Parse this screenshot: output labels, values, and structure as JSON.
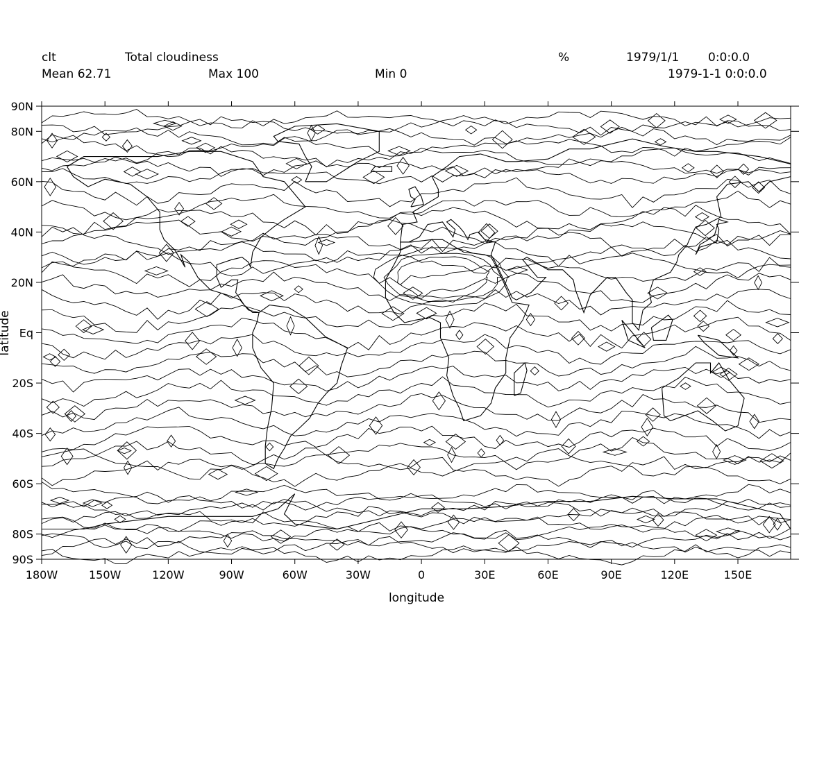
{
  "header": {
    "variable": "clt",
    "long_name": "Total cloudiness",
    "units": "%",
    "date": "1979/1/1",
    "time": "0:0:0.0",
    "timestamp": "1979-1-1 0:0:0.0",
    "mean": "Mean 62.71",
    "max": "Max 100",
    "min": "Min 0"
  },
  "axes": {
    "x_title": "longitude",
    "y_title": "latitude",
    "x_ticks": [
      {
        "value": -180,
        "label": "180W"
      },
      {
        "value": -150,
        "label": "150W"
      },
      {
        "value": -120,
        "label": "120W"
      },
      {
        "value": -90,
        "label": "90W"
      },
      {
        "value": -60,
        "label": "60W"
      },
      {
        "value": -30,
        "label": "30W"
      },
      {
        "value": 0,
        "label": "0"
      },
      {
        "value": 30,
        "label": "30E"
      },
      {
        "value": 60,
        "label": "60E"
      },
      {
        "value": 90,
        "label": "90E"
      },
      {
        "value": 120,
        "label": "120E"
      },
      {
        "value": 150,
        "label": "150E"
      }
    ],
    "y_ticks": [
      {
        "value": 90,
        "label": "90N"
      },
      {
        "value": 80,
        "label": "80N"
      },
      {
        "value": 60,
        "label": "60N"
      },
      {
        "value": 40,
        "label": "40N"
      },
      {
        "value": 20,
        "label": "20N"
      },
      {
        "value": 0,
        "label": "Eq"
      },
      {
        "value": -20,
        "label": "20S"
      },
      {
        "value": -40,
        "label": "40S"
      },
      {
        "value": -60,
        "label": "60S"
      },
      {
        "value": -80,
        "label": "80S"
      },
      {
        "value": -90,
        "label": "90S"
      }
    ],
    "x_range": [
      -180,
      175
    ],
    "y_range": [
      -90,
      90
    ]
  },
  "map": {
    "projection": "equirectangular",
    "field": "contour lines of total cloudiness",
    "line_color": "#000000",
    "background": "#ffffff"
  }
}
